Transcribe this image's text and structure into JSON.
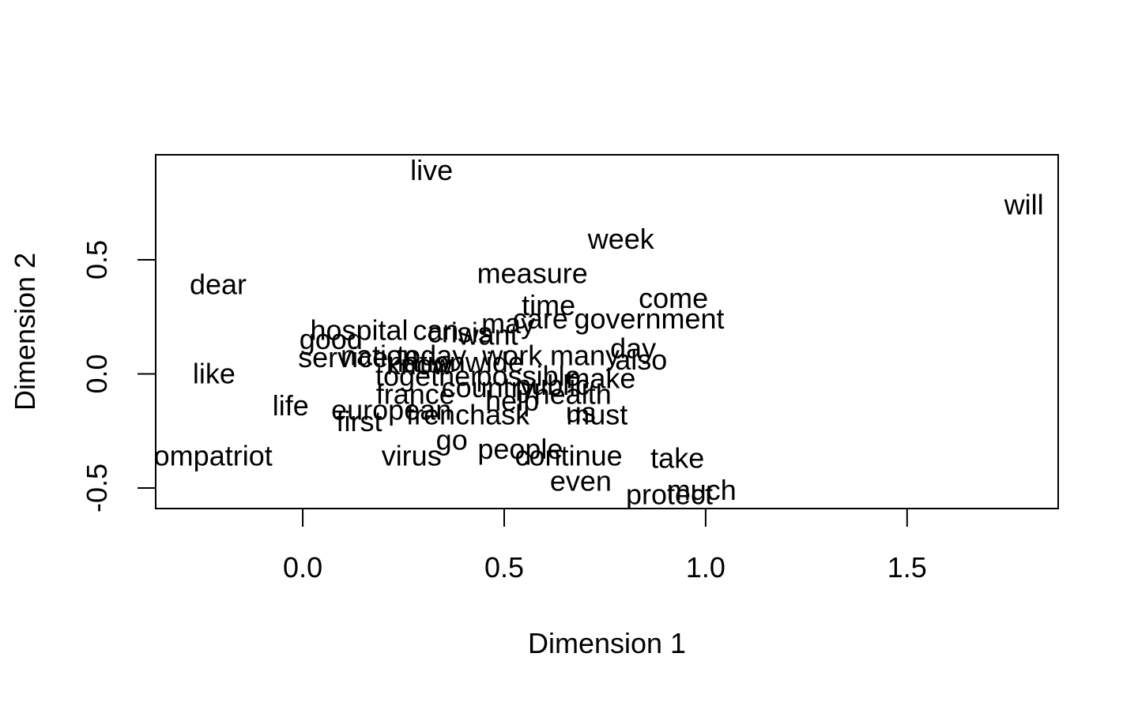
{
  "chart_data": {
    "type": "scatter",
    "title": "",
    "xlabel": "Dimension 1",
    "ylabel": "Dimension 2",
    "xlim": [
      -0.365,
      1.875
    ],
    "ylim": [
      -0.59,
      0.96
    ],
    "x_ticks": [
      {
        "value": 0.0,
        "label": "0.0"
      },
      {
        "value": 0.5,
        "label": "0.5"
      },
      {
        "value": 1.0,
        "label": "1.0"
      },
      {
        "value": 1.5,
        "label": "1.5"
      }
    ],
    "y_ticks": [
      {
        "value": -0.5,
        "label": "-0.5"
      },
      {
        "value": 0.0,
        "label": "0.0"
      },
      {
        "value": 0.5,
        "label": "0.5"
      }
    ],
    "points": [
      {
        "label": "live",
        "x": 0.32,
        "y": 0.89
      },
      {
        "label": "will",
        "x": 1.79,
        "y": 0.74
      },
      {
        "label": "week",
        "x": 0.79,
        "y": 0.59
      },
      {
        "label": "measure",
        "x": 0.57,
        "y": 0.44
      },
      {
        "label": "dear",
        "x": -0.21,
        "y": 0.39
      },
      {
        "label": "come",
        "x": 0.92,
        "y": 0.33
      },
      {
        "label": "time",
        "x": 0.61,
        "y": 0.3
      },
      {
        "label": "care",
        "x": 0.59,
        "y": 0.24
      },
      {
        "label": "government",
        "x": 0.86,
        "y": 0.24
      },
      {
        "label": "may",
        "x": 0.51,
        "y": 0.22
      },
      {
        "label": "hospital",
        "x": 0.14,
        "y": 0.19
      },
      {
        "label": "can",
        "x": 0.33,
        "y": 0.19
      },
      {
        "label": "crisis",
        "x": 0.39,
        "y": 0.18
      },
      {
        "label": "want",
        "x": 0.46,
        "y": 0.17
      },
      {
        "label": "good",
        "x": 0.07,
        "y": 0.15
      },
      {
        "label": "day",
        "x": 0.82,
        "y": 0.11
      },
      {
        "label": "today",
        "x": 0.32,
        "y": 0.08
      },
      {
        "label": "work",
        "x": 0.52,
        "y": 0.08
      },
      {
        "label": "many",
        "x": 0.7,
        "y": 0.08
      },
      {
        "label": "service",
        "x": 0.1,
        "y": 0.07
      },
      {
        "label": "nation",
        "x": 0.19,
        "y": 0.08
      },
      {
        "label": "also",
        "x": 0.84,
        "y": 0.06
      },
      {
        "label": "nationwide",
        "x": 0.38,
        "y": 0.05
      },
      {
        "label": "know",
        "x": 0.29,
        "y": 0.04
      },
      {
        "label": "like",
        "x": -0.22,
        "y": 0.0
      },
      {
        "label": "together",
        "x": 0.31,
        "y": -0.01
      },
      {
        "label": "possible",
        "x": 0.56,
        "y": -0.01
      },
      {
        "label": "make",
        "x": 0.74,
        "y": -0.02
      },
      {
        "label": "country",
        "x": 0.46,
        "y": -0.06
      },
      {
        "label": "public",
        "x": 0.62,
        "y": -0.05
      },
      {
        "label": "health",
        "x": 0.67,
        "y": -0.09
      },
      {
        "label": "france",
        "x": 0.28,
        "y": -0.09
      },
      {
        "label": "help",
        "x": 0.52,
        "y": -0.12
      },
      {
        "label": "life",
        "x": -0.03,
        "y": -0.14
      },
      {
        "label": "european",
        "x": 0.22,
        "y": -0.16
      },
      {
        "label": "us",
        "x": 0.69,
        "y": -0.17
      },
      {
        "label": "must",
        "x": 0.73,
        "y": -0.18
      },
      {
        "label": "frenchask",
        "x": 0.41,
        "y": -0.18
      },
      {
        "label": "first",
        "x": 0.14,
        "y": -0.21
      },
      {
        "label": "go",
        "x": 0.37,
        "y": -0.29
      },
      {
        "label": "people",
        "x": 0.54,
        "y": -0.33
      },
      {
        "label": "compatriot",
        "x": -0.24,
        "y": -0.36
      },
      {
        "label": "virus",
        "x": 0.27,
        "y": -0.36
      },
      {
        "label": "continue",
        "x": 0.66,
        "y": -0.36
      },
      {
        "label": "take",
        "x": 0.93,
        "y": -0.37
      },
      {
        "label": "even",
        "x": 0.69,
        "y": -0.47
      },
      {
        "label": "much",
        "x": 0.99,
        "y": -0.51
      },
      {
        "label": "protect",
        "x": 0.91,
        "y": -0.53
      }
    ]
  }
}
